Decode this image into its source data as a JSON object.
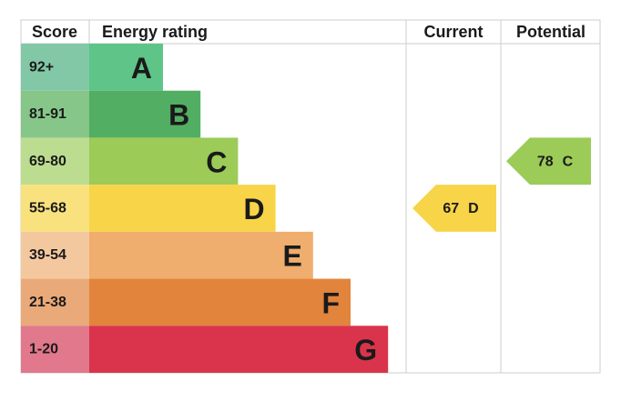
{
  "header": {
    "score": "Score",
    "rating": "Energy rating",
    "current": "Current",
    "potential": "Potential"
  },
  "bands": [
    {
      "range": "92+",
      "letter": "A",
      "color": "#5ec487",
      "light": "#83c8a6"
    },
    {
      "range": "81-91",
      "letter": "B",
      "color": "#52ae62",
      "light": "#86c689"
    },
    {
      "range": "69-80",
      "letter": "C",
      "color": "#9ccb58",
      "light": "#bcdc8f"
    },
    {
      "range": "55-68",
      "letter": "D",
      "color": "#f7d448",
      "light": "#f9e27e"
    },
    {
      "range": "39-54",
      "letter": "E",
      "color": "#efad6e",
      "light": "#f4c89f"
    },
    {
      "range": "21-38",
      "letter": "F",
      "color": "#e2843b",
      "light": "#eaa978"
    },
    {
      "range": "1-20",
      "letter": "G",
      "color": "#d9344b",
      "light": "#e1788c"
    }
  ],
  "current": {
    "value": 67,
    "letter": "D"
  },
  "potential": {
    "value": 78,
    "letter": "C"
  }
}
